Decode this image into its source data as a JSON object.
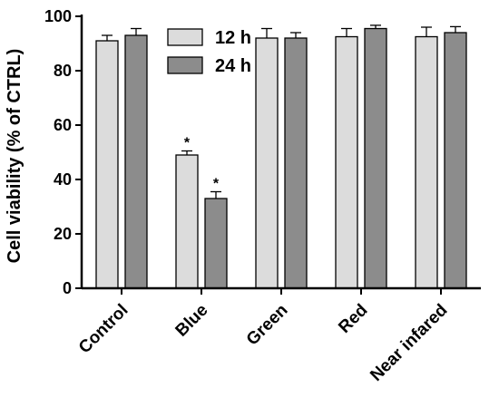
{
  "chart_data": {
    "type": "bar",
    "categories": [
      "Control",
      "Blue",
      "Green",
      "Red",
      "Near infared"
    ],
    "series": [
      {
        "name": "12 h",
        "values": [
          91,
          49,
          92,
          92.5,
          92.5
        ],
        "errors": [
          2,
          1.5,
          3.5,
          3,
          3.5
        ],
        "color": "#dcdcdc"
      },
      {
        "name": "24 h",
        "values": [
          93,
          33,
          92,
          95.5,
          94
        ],
        "errors": [
          2.5,
          2.5,
          2,
          1.2,
          2.2
        ],
        "color": "#8c8c8c"
      }
    ],
    "annotations": [
      {
        "category": "Blue",
        "series": "12 h",
        "text": "*"
      },
      {
        "category": "Blue",
        "series": "24 h",
        "text": "*"
      }
    ],
    "title": "",
    "xlabel": "",
    "ylabel": "Cell viability (% of CTRL)",
    "ylim": [
      0,
      100
    ],
    "yticks": [
      0,
      20,
      40,
      60,
      80,
      100
    ],
    "legend_position": "top-center",
    "grid": false
  }
}
